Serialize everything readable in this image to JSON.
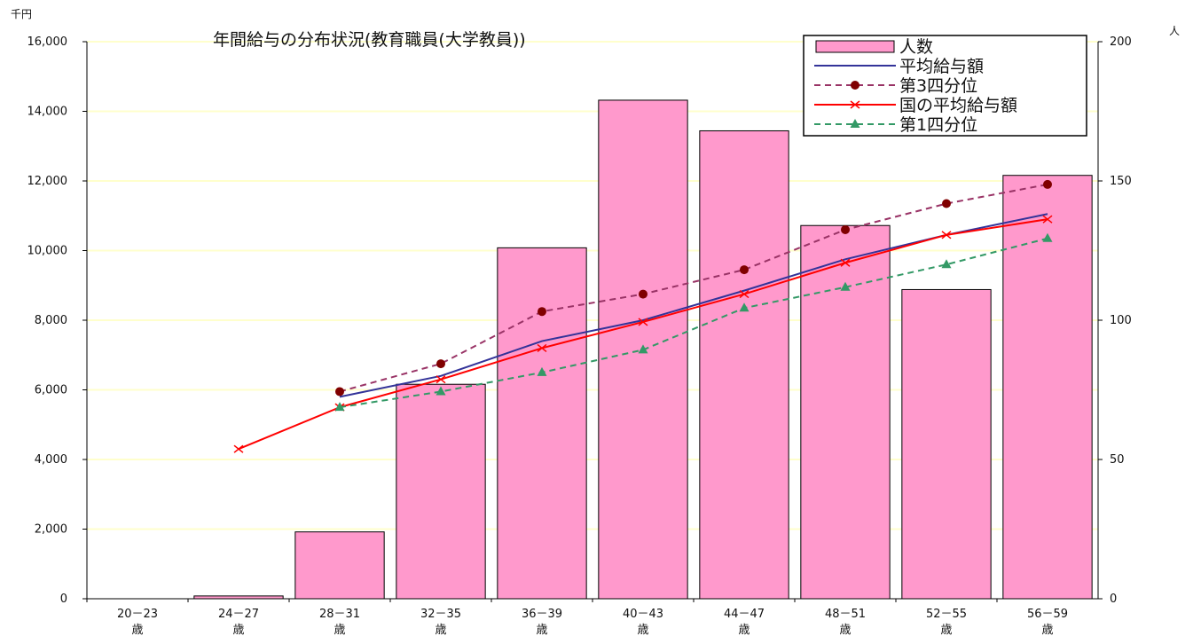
{
  "chart_data": {
    "type": "bar",
    "title": "年間給与の分布状況(教育職員(大学教員))",
    "y_left_unit": "千円",
    "y_right_unit": "人",
    "y_left_range": [
      0,
      16000
    ],
    "y_right_range": [
      0,
      200
    ],
    "y_left_ticks": [
      0,
      2000,
      4000,
      6000,
      8000,
      10000,
      12000,
      14000,
      16000
    ],
    "y_left_tick_labels": [
      "0",
      "2,000",
      "4,000",
      "6,000",
      "8,000",
      "10,000",
      "12,000",
      "14,000",
      "16,000"
    ],
    "y_right_ticks": [
      0,
      50,
      100,
      150,
      200
    ],
    "y_right_tick_labels": [
      "0",
      "50",
      "100",
      "150",
      "200"
    ],
    "categories": [
      {
        "range": "20－23",
        "suffix": "歳"
      },
      {
        "range": "24－27",
        "suffix": "歳"
      },
      {
        "range": "28－31",
        "suffix": "歳"
      },
      {
        "range": "32－35",
        "suffix": "歳"
      },
      {
        "range": "36－39",
        "suffix": "歳"
      },
      {
        "range": "40－43",
        "suffix": "歳"
      },
      {
        "range": "44－47",
        "suffix": "歳"
      },
      {
        "range": "48－51",
        "suffix": "歳"
      },
      {
        "range": "52－55",
        "suffix": "歳"
      },
      {
        "range": "56－59",
        "suffix": "歳"
      }
    ],
    "gridlines": true,
    "legend_position": "top-right",
    "series": [
      {
        "name": "人数",
        "kind": "bar",
        "axis": "right",
        "color": "#ff99cc",
        "values": [
          0,
          1,
          24,
          77,
          126,
          179,
          168,
          134,
          111,
          152
        ]
      },
      {
        "name": "平均給与額",
        "kind": "line",
        "axis": "left",
        "color": "#333399",
        "marker": "none",
        "values": [
          null,
          null,
          5800,
          6400,
          7400,
          8000,
          8850,
          9750,
          10450,
          11050
        ]
      },
      {
        "name": "第3四分位",
        "kind": "line",
        "axis": "left",
        "color": "#993366",
        "dash": true,
        "marker": "circle",
        "marker_color": "#800000",
        "values": [
          null,
          null,
          5950,
          6750,
          8250,
          8750,
          9450,
          10600,
          11350,
          11900
        ]
      },
      {
        "name": "国の平均給与額",
        "kind": "line",
        "axis": "left",
        "color": "#ff0000",
        "marker": "x",
        "values": [
          null,
          4300,
          5500,
          6300,
          7200,
          7950,
          8750,
          9650,
          10450,
          10900
        ]
      },
      {
        "name": "第1四分位",
        "kind": "line",
        "axis": "left",
        "color": "#339966",
        "dash": true,
        "marker": "triangle",
        "values": [
          null,
          null,
          5500,
          5950,
          6500,
          7150,
          8350,
          8950,
          9600,
          10350
        ]
      }
    ]
  }
}
